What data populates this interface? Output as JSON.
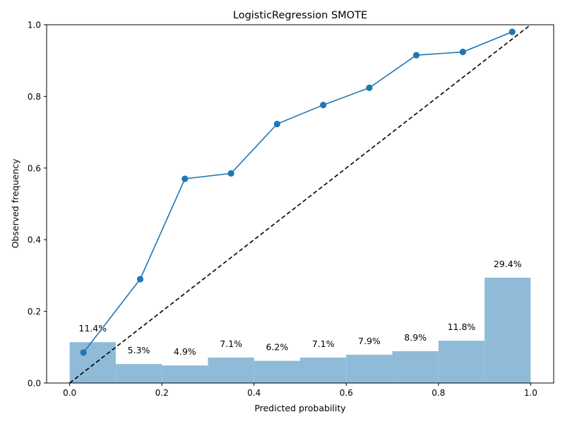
{
  "chart_data": {
    "type": "line",
    "title": "LogisticRegression SMOTE",
    "xlabel": "Predicted probability",
    "ylabel": "Observed frequency",
    "xlim": [
      -0.05,
      1.05
    ],
    "ylim": [
      0.0,
      1.0
    ],
    "xticks": [
      0.0,
      0.2,
      0.4,
      0.6,
      0.8,
      1.0
    ],
    "xtick_labels": [
      "0.0",
      "0.2",
      "0.4",
      "0.6",
      "0.8",
      "1.0"
    ],
    "yticks": [
      0.0,
      0.2,
      0.4,
      0.6,
      0.8,
      1.0
    ],
    "ytick_labels": [
      "0.0",
      "0.2",
      "0.4",
      "0.6",
      "0.8",
      "1.0"
    ],
    "grid": false,
    "calibration_curve": {
      "x": [
        0.03,
        0.153,
        0.25,
        0.35,
        0.45,
        0.55,
        0.65,
        0.752,
        0.853,
        0.96
      ],
      "y": [
        0.085,
        0.29,
        0.57,
        0.585,
        0.723,
        0.776,
        0.824,
        0.915,
        0.924,
        0.98
      ],
      "color": "#1f77b4"
    },
    "reference_line": {
      "x": [
        0.0,
        1.0
      ],
      "y": [
        0.0,
        1.0
      ],
      "style": "dashed",
      "color": "#000000"
    },
    "histogram": {
      "bin_edges": [
        0.0,
        0.1,
        0.2,
        0.3,
        0.4,
        0.5,
        0.6,
        0.7,
        0.8,
        0.9,
        1.0
      ],
      "values": [
        0.114,
        0.053,
        0.049,
        0.071,
        0.062,
        0.071,
        0.079,
        0.089,
        0.118,
        0.294
      ],
      "labels": [
        "11.4%",
        "5.3%",
        "4.9%",
        "7.1%",
        "6.2%",
        "7.1%",
        "7.9%",
        "8.9%",
        "11.8%",
        "29.4%"
      ],
      "color": "#8fbbd9"
    }
  }
}
